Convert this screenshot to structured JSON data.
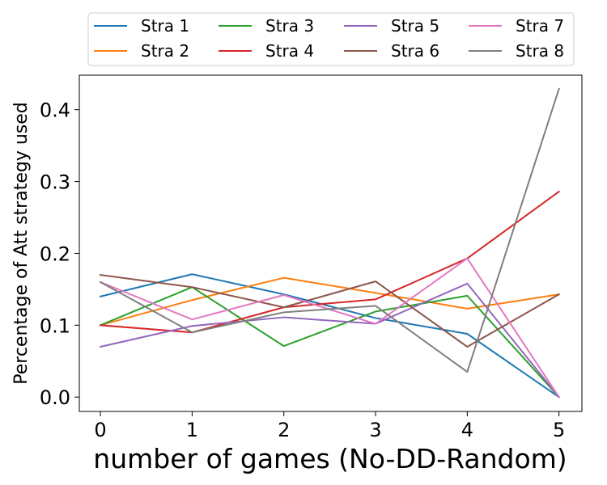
{
  "chart_data": {
    "type": "line",
    "title": "",
    "xlabel": "number of games (No-DD-Random)",
    "ylabel": "Percentage of Att strategy used",
    "xlim": [
      -0.23,
      5.25
    ],
    "ylim": [
      -0.02,
      0.448
    ],
    "xticks": [
      0,
      1,
      2,
      3,
      4,
      5
    ],
    "yticks": [
      0.0,
      0.1,
      0.2,
      0.3,
      0.4
    ],
    "ytick_labels": [
      "0.0",
      "0.1",
      "0.2",
      "0.3",
      "0.4"
    ],
    "grid": false,
    "legend_position": "top-center (outside, above plot), 4 columns",
    "x": [
      0,
      1,
      2,
      3,
      4,
      5
    ],
    "series": [
      {
        "name": "Stra 1",
        "color": "#1f77b4",
        "values": [
          0.14,
          0.171,
          0.143,
          0.11,
          0.088,
          0.0
        ]
      },
      {
        "name": "Stra 2",
        "color": "#ff7f0e",
        "values": [
          0.1,
          0.135,
          0.166,
          0.145,
          0.123,
          0.143
        ]
      },
      {
        "name": "Stra 3",
        "color": "#2ca02c",
        "values": [
          0.1,
          0.153,
          0.071,
          0.119,
          0.141,
          0.0
        ]
      },
      {
        "name": "Stra 4",
        "color": "#d62728",
        "values": [
          0.1,
          0.09,
          0.125,
          0.136,
          0.193,
          0.286
        ]
      },
      {
        "name": "Stra 5",
        "color": "#9467bd",
        "values": [
          0.07,
          0.099,
          0.111,
          0.102,
          0.158,
          0.0
        ]
      },
      {
        "name": "Stra 6",
        "color": "#8c564b",
        "values": [
          0.17,
          0.153,
          0.125,
          0.161,
          0.07,
          0.143
        ]
      },
      {
        "name": "Stra 7",
        "color": "#e377c2",
        "values": [
          0.16,
          0.108,
          0.142,
          0.102,
          0.193,
          0.0
        ]
      },
      {
        "name": "Stra 8",
        "color": "#7f7f7f",
        "values": [
          0.16,
          0.09,
          0.118,
          0.127,
          0.035,
          0.429
        ]
      }
    ]
  }
}
